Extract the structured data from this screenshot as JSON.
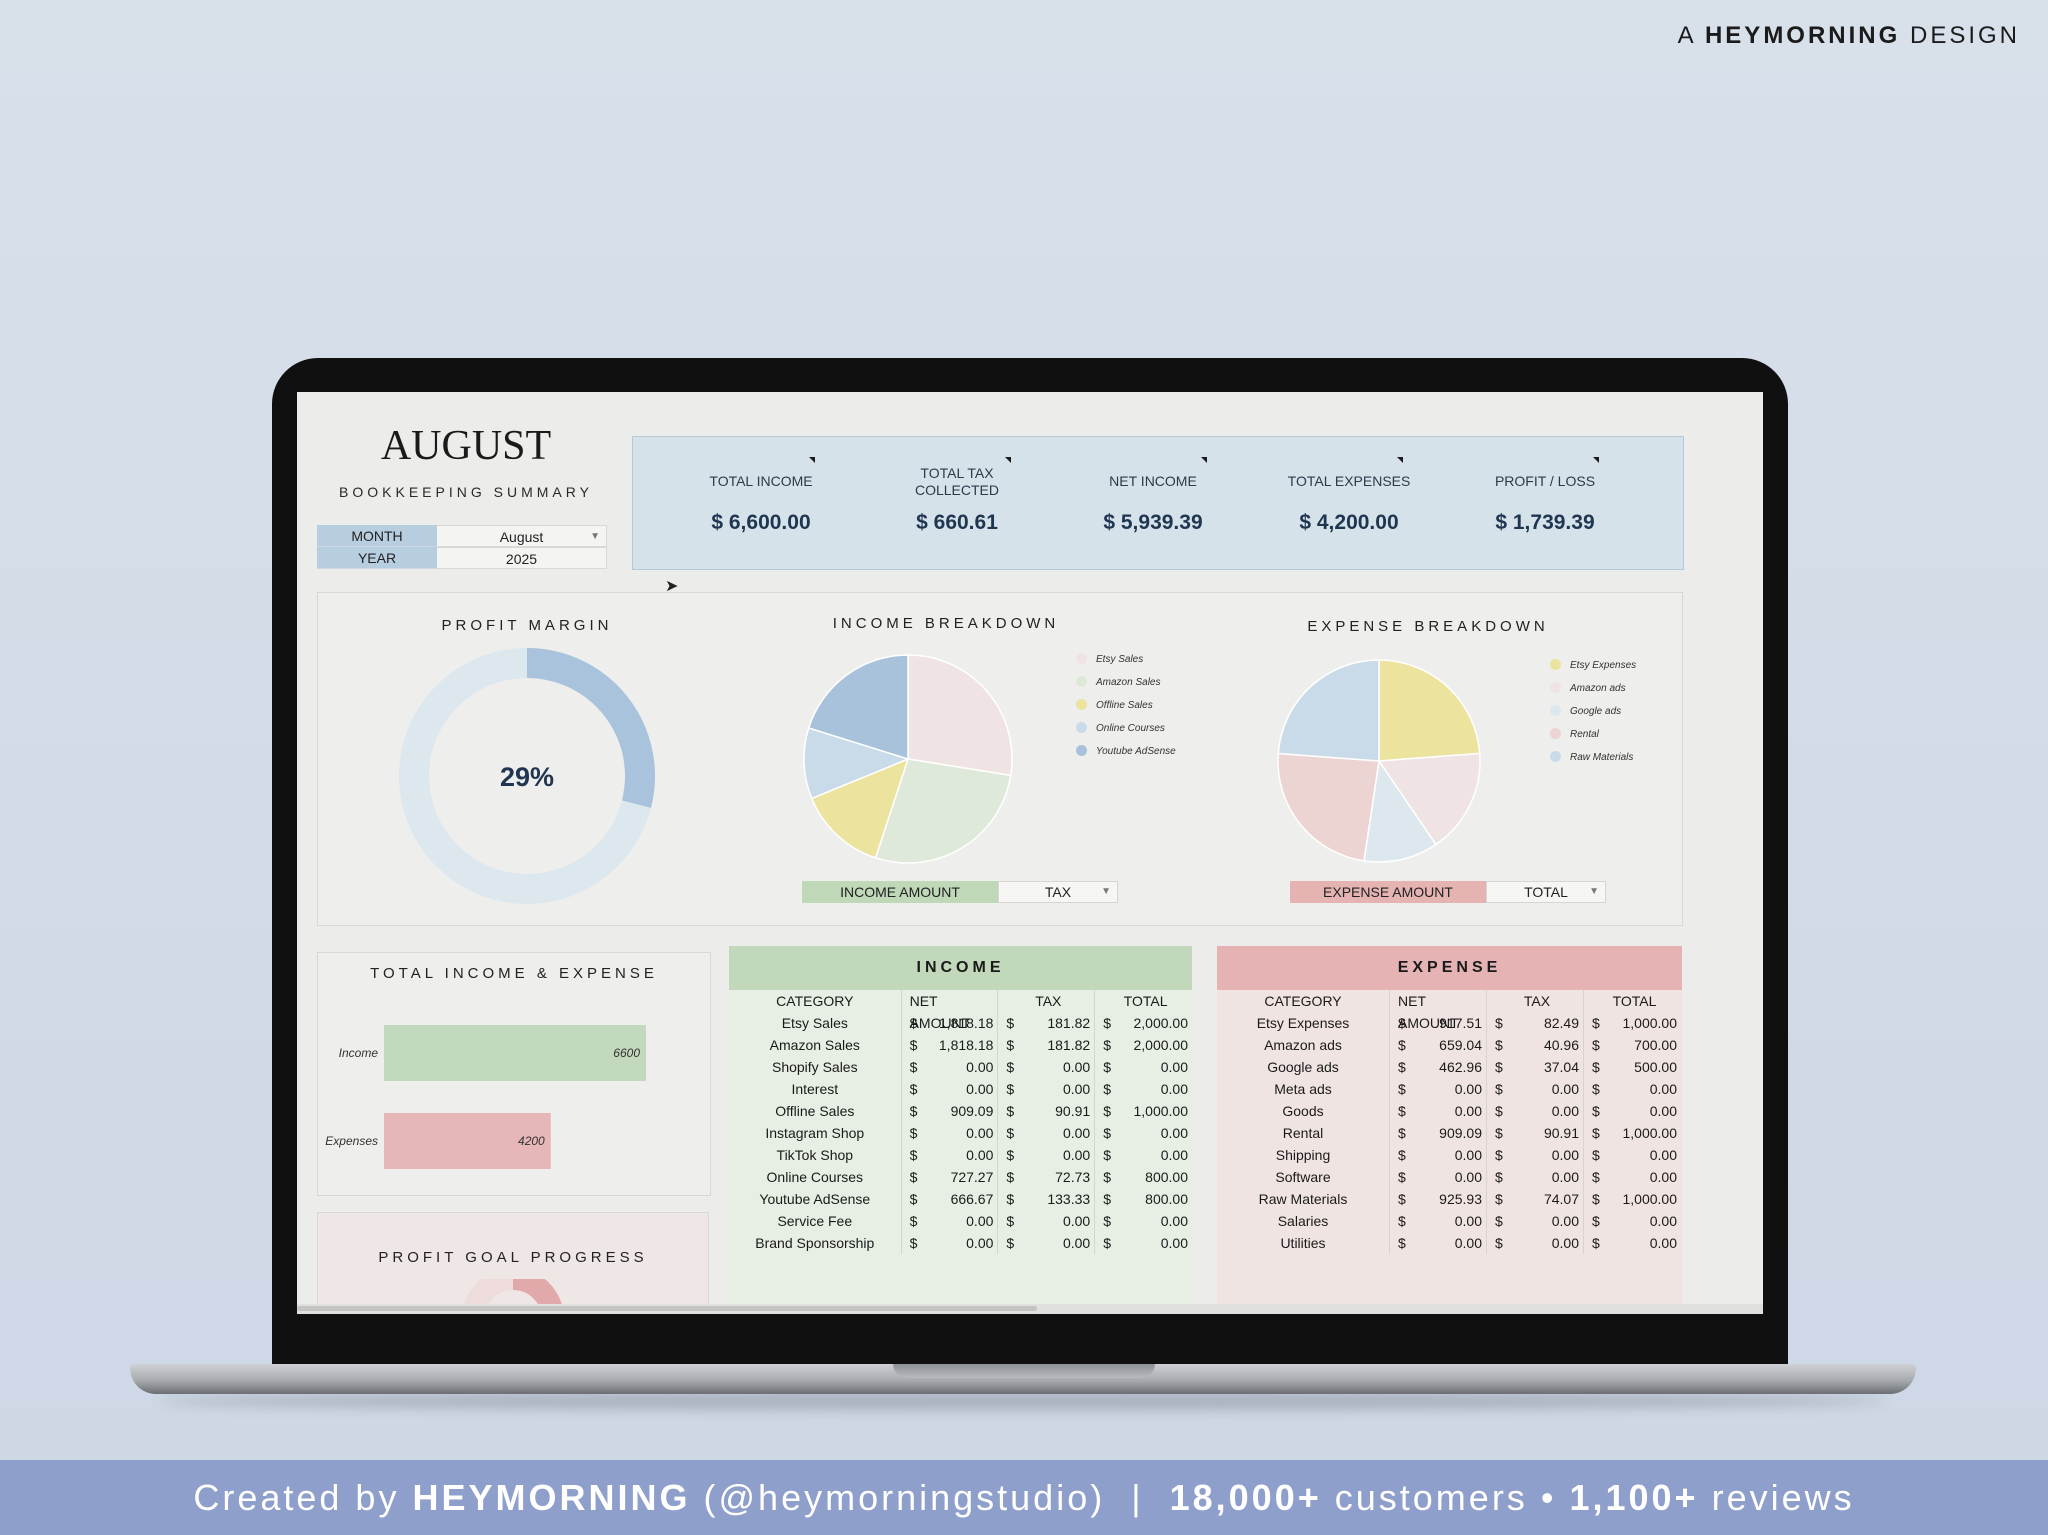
{
  "brand_top": {
    "prefix": "A",
    "name": "HEYMORNING",
    "suffix": "DESIGN"
  },
  "banner": {
    "created_by": "Created by",
    "name": "HEYMORNING",
    "handle": "(@heymorningstudio)",
    "sep": "|",
    "customers_num": "18,000+",
    "customers_label": "customers",
    "dot": "•",
    "reviews_num": "1,100+",
    "reviews_label": "reviews"
  },
  "dashboard": {
    "month_title": "AUGUST",
    "subtitle": "BOOKKEEPING SUMMARY",
    "selectors": [
      {
        "label": "MONTH",
        "value": "August",
        "dropdown": true
      },
      {
        "label": "YEAR",
        "value": "2025",
        "dropdown": false
      }
    ],
    "kpis": [
      {
        "label": "TOTAL INCOME",
        "value": "$  6,600.00"
      },
      {
        "label": "TOTAL TAX\nCOLLECTED",
        "value": "$   660.61"
      },
      {
        "label": "NET INCOME",
        "value": "$  5,939.39"
      },
      {
        "label": "TOTAL EXPENSES",
        "value": "$  4,200.00"
      },
      {
        "label": "PROFIT / LOSS",
        "value": "$  1,739.39"
      }
    ],
    "profit_margin": {
      "title": "PROFIT MARGIN",
      "value_label": "29%",
      "fraction": 0.29,
      "color": "#a9c3dd",
      "track": "#dde7ee"
    },
    "income_breakdown": {
      "title": "INCOME BREAKDOWN",
      "legend": [
        {
          "label": "Etsy Sales",
          "color": "#efe3e4"
        },
        {
          "label": "Amazon Sales",
          "color": "#dfe9da"
        },
        {
          "label": "Offline Sales",
          "color": "#ece39e"
        },
        {
          "label": "Online Courses",
          "color": "#c9dbe8"
        },
        {
          "label": "Youtube AdSense",
          "color": "#a9c2dc"
        }
      ],
      "dropdown": {
        "label": "INCOME AMOUNT",
        "value": "TAX"
      }
    },
    "expense_breakdown": {
      "title": "EXPENSE BREAKDOWN",
      "legend": [
        {
          "label": "Etsy Expenses",
          "color": "#ece39e"
        },
        {
          "label": "Amazon ads",
          "color": "#efe3e4"
        },
        {
          "label": "Google ads",
          "color": "#dde8ee"
        },
        {
          "label": "Rental",
          "color": "#ecd4d2"
        },
        {
          "label": "Raw Materials",
          "color": "#c9dbe8"
        }
      ],
      "dropdown": {
        "label": "EXPENSE AMOUNT",
        "value": "TOTAL"
      }
    },
    "total_income_expense": {
      "title": "TOTAL  INCOME & EXPENSE"
    },
    "profit_goal": {
      "title": "PROFIT GOAL PROGRESS"
    },
    "income_table": {
      "title": "INCOME",
      "columns": [
        "CATEGORY",
        "NET AMOUNT",
        "TAX",
        "TOTAL"
      ],
      "rows": [
        [
          "Etsy Sales",
          "1,818.18",
          "181.82",
          "2,000.00"
        ],
        [
          "Amazon Sales",
          "1,818.18",
          "181.82",
          "2,000.00"
        ],
        [
          "Shopify Sales",
          "0.00",
          "0.00",
          "0.00"
        ],
        [
          "Interest",
          "0.00",
          "0.00",
          "0.00"
        ],
        [
          "Offline Sales",
          "909.09",
          "90.91",
          "1,000.00"
        ],
        [
          "Instagram Shop",
          "0.00",
          "0.00",
          "0.00"
        ],
        [
          "TikTok Shop",
          "0.00",
          "0.00",
          "0.00"
        ],
        [
          "Online Courses",
          "727.27",
          "72.73",
          "800.00"
        ],
        [
          "Youtube AdSense",
          "666.67",
          "133.33",
          "800.00"
        ],
        [
          "Service Fee",
          "0.00",
          "0.00",
          "0.00"
        ],
        [
          "Brand Sponsorship",
          "0.00",
          "0.00",
          "0.00"
        ]
      ]
    },
    "expense_table": {
      "title": "EXPENSE",
      "columns": [
        "CATEGORY",
        "NET AMOUNT",
        "TAX",
        "TOTAL"
      ],
      "rows": [
        [
          "Etsy Expenses",
          "917.51",
          "82.49",
          "1,000.00"
        ],
        [
          "Amazon ads",
          "659.04",
          "40.96",
          "700.00"
        ],
        [
          "Google ads",
          "462.96",
          "37.04",
          "500.00"
        ],
        [
          "Meta ads",
          "0.00",
          "0.00",
          "0.00"
        ],
        [
          "Goods",
          "0.00",
          "0.00",
          "0.00"
        ],
        [
          "Rental",
          "909.09",
          "90.91",
          "1,000.00"
        ],
        [
          "Shipping",
          "0.00",
          "0.00",
          "0.00"
        ],
        [
          "Software",
          "0.00",
          "0.00",
          "0.00"
        ],
        [
          "Raw Materials",
          "925.93",
          "74.07",
          "1,000.00"
        ],
        [
          "Salaries",
          "0.00",
          "0.00",
          "0.00"
        ],
        [
          "Utilities",
          "0.00",
          "0.00",
          "0.00"
        ]
      ]
    },
    "currency_symbol": "$"
  },
  "chart_data": [
    {
      "type": "bar",
      "title": "TOTAL  INCOME & EXPENSE",
      "orientation": "horizontal",
      "categories": [
        "Income",
        "Expenses"
      ],
      "values": [
        6600,
        4200
      ],
      "colors": [
        "#c3d9bd",
        "#e7b6b8"
      ],
      "data_labels": [
        "6600",
        "4200"
      ],
      "xlim": [
        0,
        6600
      ]
    },
    {
      "type": "pie",
      "title": "INCOME BREAKDOWN",
      "categories": [
        "Etsy Sales",
        "Amazon Sales",
        "Offline Sales",
        "Online Courses",
        "Youtube AdSense"
      ],
      "values": [
        181.82,
        181.82,
        90.91,
        72.73,
        133.33
      ],
      "colors": [
        "#efe3e4",
        "#dfe9da",
        "#ece39e",
        "#c9dbe8",
        "#a9c2dc"
      ],
      "legend": "right"
    },
    {
      "type": "pie",
      "title": "EXPENSE BREAKDOWN",
      "categories": [
        "Etsy Expenses",
        "Amazon ads",
        "Google ads",
        "Rental",
        "Raw Materials"
      ],
      "values": [
        1000,
        700,
        500,
        1000,
        1000
      ],
      "colors": [
        "#ece39e",
        "#efe3e4",
        "#dde8ee",
        "#ecd4d2",
        "#c9dbe8"
      ],
      "legend": "right"
    }
  ]
}
